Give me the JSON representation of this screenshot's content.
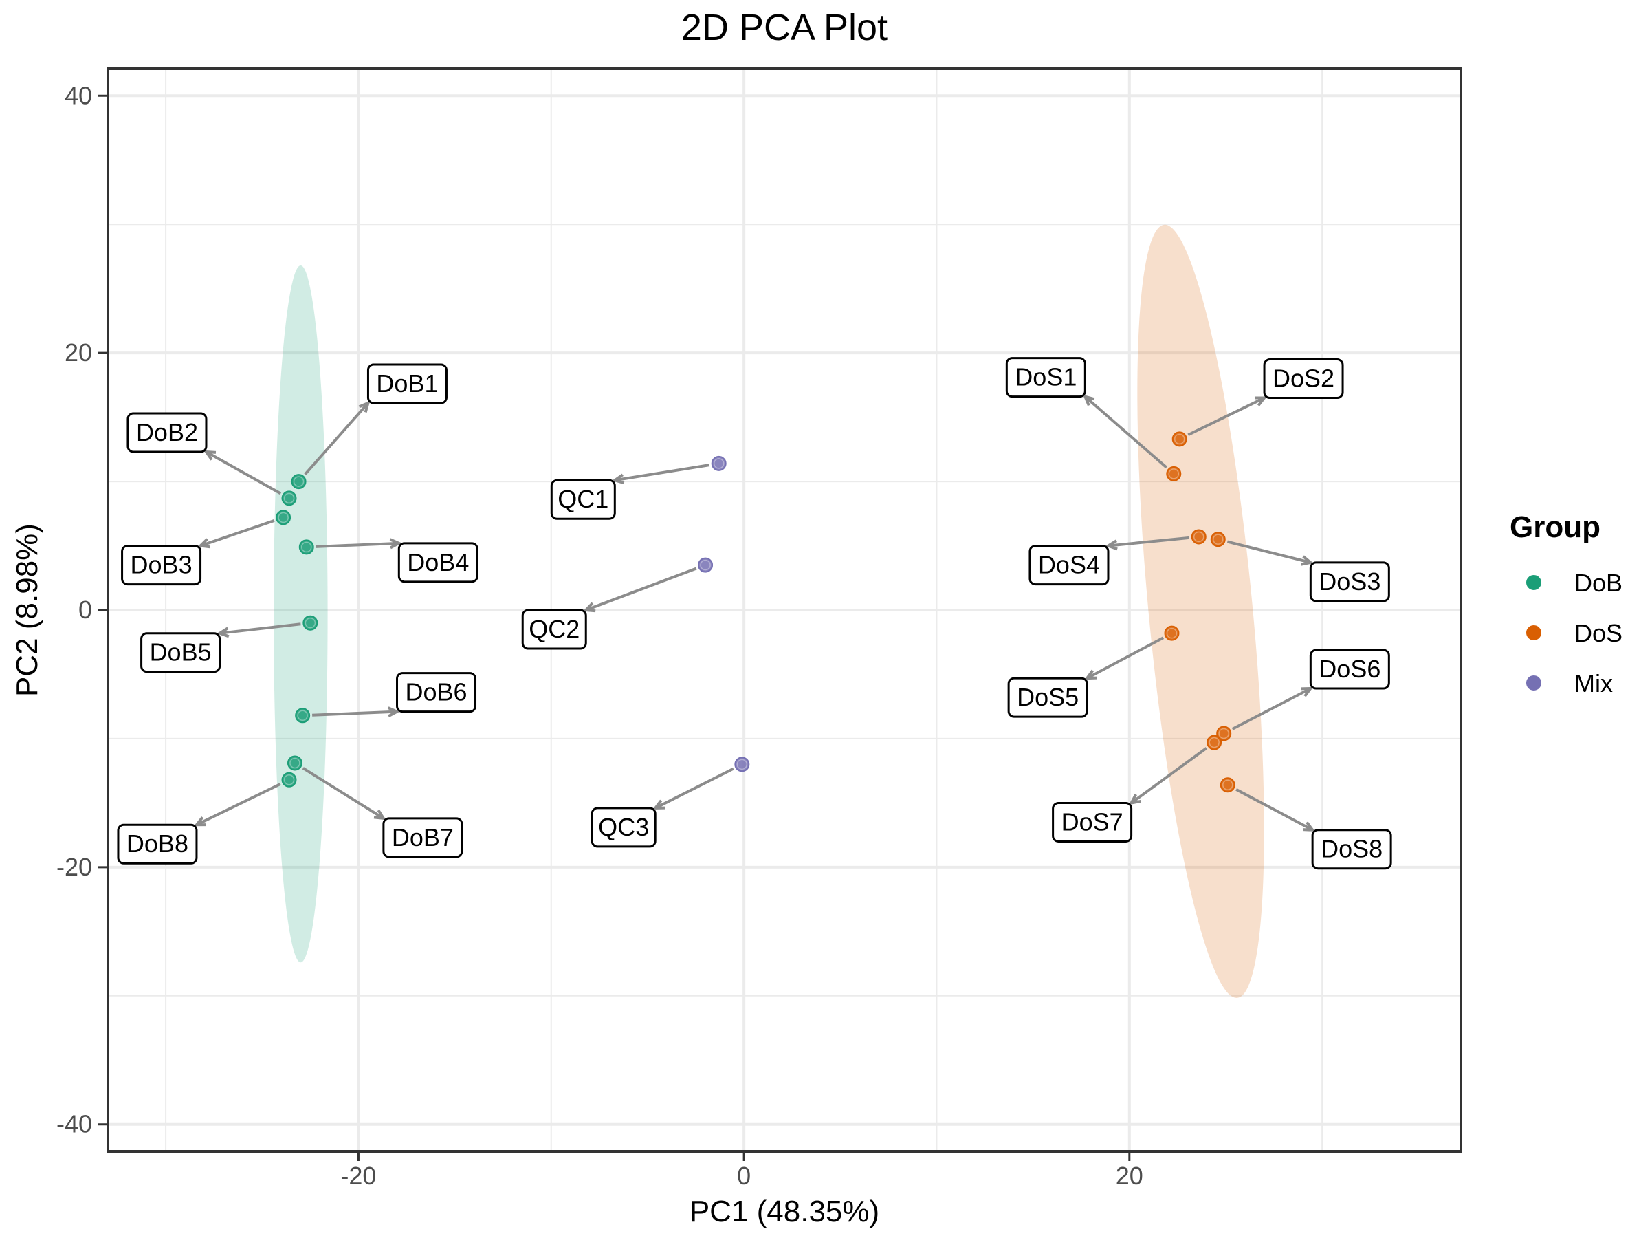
{
  "chart_data": {
    "type": "scatter",
    "title": "2D PCA Plot",
    "xlabel": "PC1 (48.35%)",
    "ylabel": "PC2 (8.98%)",
    "xlim": [
      -33,
      37.2
    ],
    "ylim": [
      -42.1,
      42.1
    ],
    "xticks": [
      -20,
      0,
      20
    ],
    "yticks": [
      -40,
      -20,
      0,
      20,
      40
    ],
    "grid": true,
    "legend": {
      "title": "Group",
      "position": "right"
    },
    "series": [
      {
        "name": "DoB",
        "color": "#1b9e77",
        "points": [
          {
            "label": "DoB1",
            "x": -23.1,
            "y": 10.0
          },
          {
            "label": "DoB2",
            "x": -23.6,
            "y": 8.7
          },
          {
            "label": "DoB3",
            "x": -23.9,
            "y": 7.2
          },
          {
            "label": "DoB4",
            "x": -22.7,
            "y": 4.9
          },
          {
            "label": "DoB5",
            "x": -22.5,
            "y": -1.0
          },
          {
            "label": "DoB6",
            "x": -22.9,
            "y": -8.2
          },
          {
            "label": "DoB7",
            "x": -23.3,
            "y": -11.9
          },
          {
            "label": "DoB8",
            "x": -23.6,
            "y": -13.2
          }
        ],
        "ellipse": {
          "cx": -23.0,
          "cy": -0.3,
          "rx": 1.4,
          "ry": 27.1,
          "angle": 0
        }
      },
      {
        "name": "DoS",
        "color": "#d95f02",
        "points": [
          {
            "label": "DoS1",
            "x": 22.3,
            "y": 10.6
          },
          {
            "label": "DoS2",
            "x": 22.6,
            "y": 13.3
          },
          {
            "label": "DoS3",
            "x": 24.6,
            "y": 5.5
          },
          {
            "label": "DoS4",
            "x": 23.6,
            "y": 5.7
          },
          {
            "label": "DoS5",
            "x": 22.2,
            "y": -1.8
          },
          {
            "label": "DoS6",
            "x": 24.9,
            "y": -9.6
          },
          {
            "label": "DoS7",
            "x": 24.4,
            "y": -10.3
          },
          {
            "label": "DoS8",
            "x": 25.1,
            "y": -13.6
          }
        ],
        "ellipse": {
          "cx": 23.7,
          "cy": -0.1,
          "rx": 2.7,
          "ry": 30.2,
          "angle": -5.4
        }
      },
      {
        "name": "Mix",
        "color": "#7570b3",
        "points": [
          {
            "label": "QC1",
            "x": -1.3,
            "y": 11.4
          },
          {
            "label": "QC2",
            "x": -2.0,
            "y": 3.5
          },
          {
            "label": "QC3",
            "x": -0.1,
            "y": -12.0
          }
        ]
      }
    ]
  }
}
